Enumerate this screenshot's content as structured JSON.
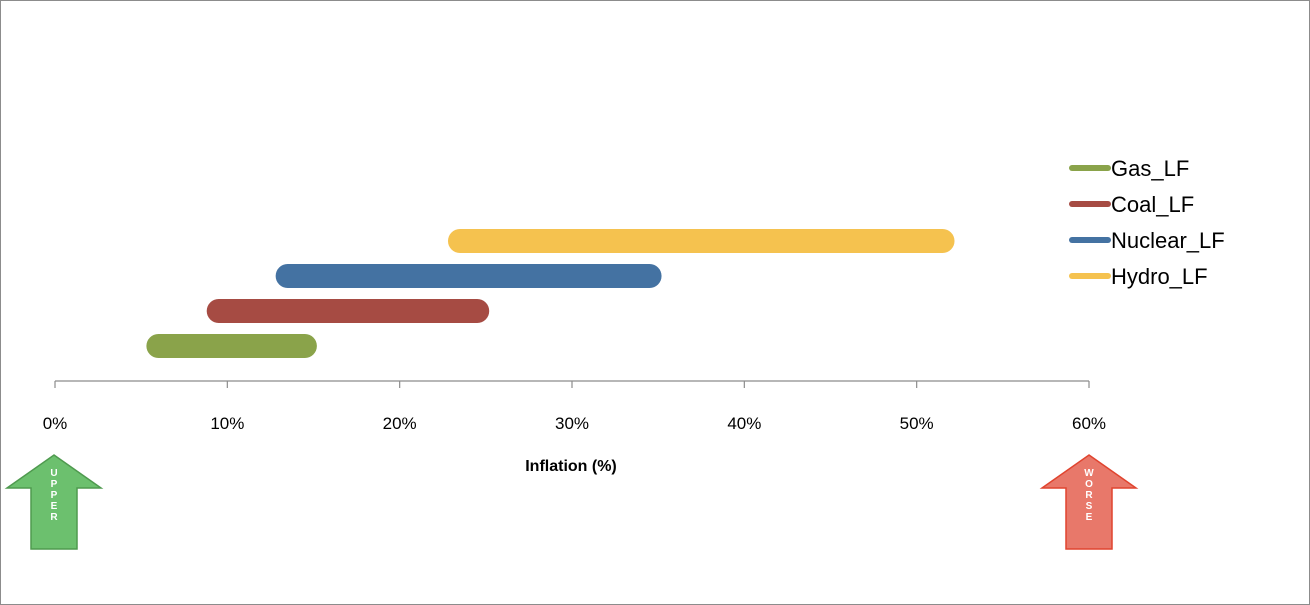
{
  "chart_data": {
    "type": "bar",
    "orientation": "horizontal-range",
    "xlabel": "Inflation (%)",
    "xlim": [
      0,
      60
    ],
    "xticks": [
      0,
      10,
      20,
      30,
      40,
      50,
      60
    ],
    "xtick_labels": [
      "0%",
      "10%",
      "20%",
      "30%",
      "40%",
      "50%",
      "60%"
    ],
    "grid": false,
    "legend_position": "right",
    "series": [
      {
        "name": "Gas_LF",
        "start": 6,
        "end": 14.5,
        "color": "#8aa34a"
      },
      {
        "name": "Coal_LF",
        "start": 9.5,
        "end": 24.5,
        "color": "#a64b43"
      },
      {
        "name": "Nuclear_LF",
        "start": 13.5,
        "end": 34.5,
        "color": "#4472a2"
      },
      {
        "name": "Hydro_LF",
        "start": 23.5,
        "end": 51.5,
        "color": "#f5c24f"
      }
    ],
    "annotations": [
      {
        "text": "UPPER",
        "kind": "arrow-up",
        "near": "left",
        "color": "#6cc06e"
      },
      {
        "text": "WORSE",
        "kind": "arrow-up",
        "near": "right",
        "color": "#e8786a"
      }
    ]
  }
}
